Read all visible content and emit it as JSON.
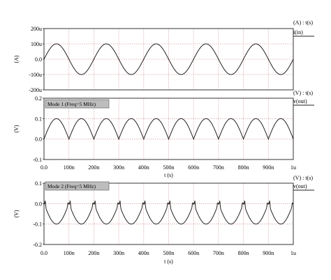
{
  "chart_data": [
    {
      "type": "line",
      "title": "",
      "legend_header": "(A) : t(s)",
      "xlabel": "",
      "ylabel": "(A)",
      "xlim": [
        0,
        1000
      ],
      "ylim": [
        -200,
        200
      ],
      "grid": true,
      "x_tick_labels": [],
      "y_ticks": [
        {
          "value": 200,
          "label": "200u"
        },
        {
          "value": 100,
          "label": "100u"
        },
        {
          "value": 0,
          "label": "0.0"
        },
        {
          "value": -100,
          "label": "-100u"
        },
        {
          "value": -200,
          "label": "-200u"
        }
      ],
      "series": [
        {
          "name": "i(in)",
          "color": "#222222",
          "waveform": "sine",
          "amplitude": 100,
          "period_ns": 200,
          "phase": "rising at t=0",
          "y_at_0": 0
        }
      ]
    },
    {
      "type": "line",
      "title": "",
      "legend_header": "(V) : t(s)",
      "annotation": "Mode 1 (Freq=5 MHz)",
      "xlabel": "t (s)",
      "ylabel": "(V)",
      "xlim": [
        0,
        1000
      ],
      "ylim": [
        -0.1,
        0.2
      ],
      "grid": true,
      "x_tick_labels": [
        "0.0",
        "100n",
        "200n",
        "300n",
        "400n",
        "500n",
        "600n",
        "700n",
        "800n",
        "900n",
        "1u"
      ],
      "y_ticks": [
        {
          "value": 0.2,
          "label": "0.2"
        },
        {
          "value": 0.1,
          "label": "0.1"
        },
        {
          "value": 0.0,
          "label": "0.0"
        },
        {
          "value": -0.1,
          "label": "-0.1"
        }
      ],
      "series": [
        {
          "name": "v(out)",
          "color": "#222222",
          "waveform": "full-wave rectified sine",
          "peak": 0.1,
          "trough": 0.0,
          "period_ns": 100,
          "peaks_at_ns": [
            50,
            150,
            250,
            350,
            450,
            550,
            650,
            750,
            850,
            950
          ]
        }
      ]
    },
    {
      "type": "line",
      "title": "",
      "legend_header": "(V) : t(s)",
      "annotation": "Mode 2 (Freq=5 MHz)",
      "xlabel": "t (s)",
      "ylabel": "(V)",
      "xlim": [
        0,
        1000
      ],
      "ylim": [
        -0.2,
        0.1
      ],
      "grid": true,
      "x_tick_labels": [
        "0.0",
        "100n",
        "200n",
        "300n",
        "400n",
        "500n",
        "600n",
        "700n",
        "800n",
        "900n",
        "1u"
      ],
      "y_ticks": [
        {
          "value": 0.1,
          "label": "0.1"
        },
        {
          "value": 0.0,
          "label": "0.0"
        },
        {
          "value": -0.1,
          "label": "-0.1"
        },
        {
          "value": -0.2,
          "label": "-0.2"
        }
      ],
      "series": [
        {
          "name": "v(out)",
          "color": "#222222",
          "waveform": "inverted rectified with spikes",
          "peak": 0.0,
          "trough": -0.1,
          "period_ns": 100,
          "spikes_at_ns": [
            0,
            100,
            200,
            300,
            400,
            500,
            600,
            700,
            800,
            900,
            1000
          ]
        }
      ]
    }
  ],
  "colors": {
    "grid": "#d9a7a7",
    "frame": "#333333",
    "trace": "#222222",
    "annotation_fill": "#bdbdbd"
  }
}
